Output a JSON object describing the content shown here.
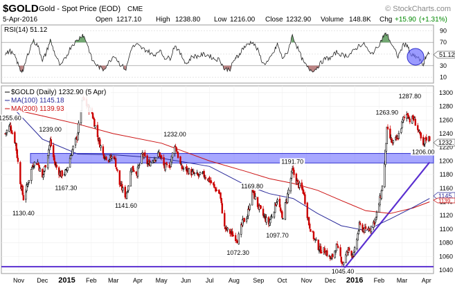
{
  "header": {
    "symbol": "$GOLD",
    "name": "Gold - Spot Price (EOD)",
    "exchange": "CME",
    "watermark": "© StockCharts.com",
    "date": "5-Apr-2016",
    "open_label": "Open",
    "open": "1217.10",
    "high_label": "High",
    "high": "1238.80",
    "low_label": "Low",
    "low": "1216.00",
    "close_label": "Close",
    "close": "1232.90",
    "volume_label": "Volume",
    "volume": "148.8K",
    "chg_label": "Chg",
    "chg": "+15.90",
    "chg_pct": "(+1.31%)"
  },
  "rsi_panel": {
    "label": "RSI(14) 51.12",
    "value_tag": "51.12",
    "ticks": [
      "90",
      "70",
      "50",
      "30",
      "10"
    ]
  },
  "price_panel": {
    "legend_main": "$GOLD (Daily) 1232.90 (5 Apr)",
    "legend_ma100": "MA(100) 1145.18",
    "legend_ma200": "MA(200) 1139.93",
    "ticks": [
      "1300",
      "1280",
      "1260",
      "1240",
      "1220",
      "1200",
      "1180",
      "1160",
      "1140",
      "1120",
      "1100",
      "1080",
      "1060",
      "1040"
    ],
    "tag_close": "1232.",
    "tag_ma100": "1145.",
    "tag_ma200": "1139.",
    "x_labels": [
      "Nov",
      "Dec",
      "2015",
      "Feb",
      "Mar",
      "Apr",
      "May",
      "Jun",
      "Jul",
      "Aug",
      "Sep",
      "Oct",
      "Nov",
      "Dec",
      "2016",
      "Feb",
      "Mar",
      "Apr"
    ]
  },
  "colors": {
    "up": "#000000",
    "down": "#cc0000",
    "ma100": "#2a2a9a",
    "ma200": "#cc1111",
    "band": "#7070ff",
    "trendline": "#5a2fd0",
    "rsi_fill_high": "#5a9a5a",
    "rsi_fill_low": "#b07070"
  },
  "chart_data": {
    "type": "candlestick",
    "title": "$GOLD Gold - Spot Price (EOD) CME",
    "ylim": [
      1035,
      1310
    ],
    "rsi_ylim": [
      0,
      100
    ],
    "annotations": [
      {
        "label": "1255.60",
        "x": "2014-10-21",
        "y": 1255.6
      },
      {
        "label": "1239.00",
        "x": "2014-12-11",
        "y": 1239.0
      },
      {
        "label": "1130.40",
        "x": "2014-11-07",
        "y": 1130.4
      },
      {
        "label": "1167.30",
        "x": "2014-12-31",
        "y": 1167.3
      },
      {
        "label": "1141.60",
        "x": "2015-03-17",
        "y": 1141.6
      },
      {
        "label": "1232.00",
        "x": "2015-05-18",
        "y": 1232.0
      },
      {
        "label": "1169.80",
        "x": "2015-08-24",
        "y": 1169.8
      },
      {
        "label": "1072.30",
        "x": "2015-08-06",
        "y": 1072.3
      },
      {
        "label": "1097.70",
        "x": "2015-09-25",
        "y": 1097.7
      },
      {
        "label": "1191.70",
        "x": "2015-10-14",
        "y": 1191.7
      },
      {
        "label": "1045.40",
        "x": "2015-12-17",
        "y": 1045.4
      },
      {
        "label": "1263.90",
        "x": "2016-02-11",
        "y": 1263.9
      },
      {
        "label": "1287.80",
        "x": "2016-03-11",
        "y": 1287.8
      },
      {
        "label": "1206.00",
        "x": "2016-03-28",
        "y": 1206.0
      }
    ],
    "horizontal_lines": [
      {
        "name": "support",
        "y": 1045
      },
      {
        "name": "band_top",
        "y": 1211
      },
      {
        "name": "band_bottom",
        "y": 1197
      }
    ],
    "trendline": {
      "from": {
        "x": "2015-12-17",
        "y": 1040
      },
      "to": {
        "x": "2016-04-05",
        "y": 1198
      }
    },
    "rsi_level": 51.12,
    "ma100_points": [
      {
        "x": "2014-10-15",
        "y": 1290
      },
      {
        "x": "2014-12-01",
        "y": 1232
      },
      {
        "x": "2015-01-15",
        "y": 1210
      },
      {
        "x": "2015-03-01",
        "y": 1209
      },
      {
        "x": "2015-05-01",
        "y": 1204
      },
      {
        "x": "2015-07-01",
        "y": 1192
      },
      {
        "x": "2015-08-15",
        "y": 1165
      },
      {
        "x": "2015-09-15",
        "y": 1152
      },
      {
        "x": "2015-10-15",
        "y": 1145
      },
      {
        "x": "2015-11-15",
        "y": 1123
      },
      {
        "x": "2015-12-15",
        "y": 1105
      },
      {
        "x": "2016-01-15",
        "y": 1098
      },
      {
        "x": "2016-02-15",
        "y": 1115
      },
      {
        "x": "2016-03-15",
        "y": 1132
      },
      {
        "x": "2016-04-05",
        "y": 1145
      }
    ],
    "ma200_points": [
      {
        "x": "2014-10-15",
        "y": 1278
      },
      {
        "x": "2014-12-01",
        "y": 1266
      },
      {
        "x": "2015-01-15",
        "y": 1254
      },
      {
        "x": "2015-03-01",
        "y": 1240
      },
      {
        "x": "2015-05-01",
        "y": 1226
      },
      {
        "x": "2015-07-01",
        "y": 1200
      },
      {
        "x": "2015-08-15",
        "y": 1185
      },
      {
        "x": "2015-09-15",
        "y": 1174
      },
      {
        "x": "2015-10-15",
        "y": 1167
      },
      {
        "x": "2015-11-15",
        "y": 1157
      },
      {
        "x": "2015-12-15",
        "y": 1142
      },
      {
        "x": "2016-01-15",
        "y": 1127
      },
      {
        "x": "2016-02-15",
        "y": 1123
      },
      {
        "x": "2016-03-15",
        "y": 1131
      },
      {
        "x": "2016-04-05",
        "y": 1140
      }
    ],
    "close_points": [
      {
        "x": "2014-10-15",
        "y": 1240
      },
      {
        "x": "2014-10-21",
        "y": 1252
      },
      {
        "x": "2014-10-28",
        "y": 1226
      },
      {
        "x": "2014-11-03",
        "y": 1170
      },
      {
        "x": "2014-11-07",
        "y": 1145
      },
      {
        "x": "2014-11-12",
        "y": 1165
      },
      {
        "x": "2014-11-19",
        "y": 1196
      },
      {
        "x": "2014-11-25",
        "y": 1198
      },
      {
        "x": "2014-12-01",
        "y": 1175
      },
      {
        "x": "2014-12-05",
        "y": 1195
      },
      {
        "x": "2014-12-11",
        "y": 1228
      },
      {
        "x": "2014-12-17",
        "y": 1195
      },
      {
        "x": "2014-12-24",
        "y": 1180
      },
      {
        "x": "2014-12-31",
        "y": 1184
      },
      {
        "x": "2015-01-07",
        "y": 1213
      },
      {
        "x": "2015-01-14",
        "y": 1235
      },
      {
        "x": "2015-01-21",
        "y": 1292
      },
      {
        "x": "2015-01-26",
        "y": 1282
      },
      {
        "x": "2015-02-02",
        "y": 1270
      },
      {
        "x": "2015-02-09",
        "y": 1236
      },
      {
        "x": "2015-02-16",
        "y": 1210
      },
      {
        "x": "2015-02-23",
        "y": 1203
      },
      {
        "x": "2015-03-02",
        "y": 1207
      },
      {
        "x": "2015-03-09",
        "y": 1166
      },
      {
        "x": "2015-03-17",
        "y": 1148
      },
      {
        "x": "2015-03-24",
        "y": 1190
      },
      {
        "x": "2015-03-31",
        "y": 1183
      },
      {
        "x": "2015-04-07",
        "y": 1210
      },
      {
        "x": "2015-04-14",
        "y": 1195
      },
      {
        "x": "2015-04-21",
        "y": 1203
      },
      {
        "x": "2015-04-28",
        "y": 1211
      },
      {
        "x": "2015-05-05",
        "y": 1190
      },
      {
        "x": "2015-05-12",
        "y": 1195
      },
      {
        "x": "2015-05-18",
        "y": 1225
      },
      {
        "x": "2015-05-26",
        "y": 1190
      },
      {
        "x": "2015-06-02",
        "y": 1187
      },
      {
        "x": "2015-06-09",
        "y": 1182
      },
      {
        "x": "2015-06-16",
        "y": 1178
      },
      {
        "x": "2015-06-23",
        "y": 1180
      },
      {
        "x": "2015-06-30",
        "y": 1173
      },
      {
        "x": "2015-07-07",
        "y": 1161
      },
      {
        "x": "2015-07-14",
        "y": 1152
      },
      {
        "x": "2015-07-20",
        "y": 1102
      },
      {
        "x": "2015-07-27",
        "y": 1095
      },
      {
        "x": "2015-08-03",
        "y": 1088
      },
      {
        "x": "2015-08-06",
        "y": 1085
      },
      {
        "x": "2015-08-12",
        "y": 1110
      },
      {
        "x": "2015-08-18",
        "y": 1120
      },
      {
        "x": "2015-08-24",
        "y": 1158
      },
      {
        "x": "2015-08-31",
        "y": 1135
      },
      {
        "x": "2015-09-07",
        "y": 1120
      },
      {
        "x": "2015-09-14",
        "y": 1108
      },
      {
        "x": "2015-09-21",
        "y": 1130
      },
      {
        "x": "2015-09-25",
        "y": 1146
      },
      {
        "x": "2015-10-01",
        "y": 1115
      },
      {
        "x": "2015-10-07",
        "y": 1145
      },
      {
        "x": "2015-10-14",
        "y": 1186
      },
      {
        "x": "2015-10-21",
        "y": 1166
      },
      {
        "x": "2015-10-28",
        "y": 1155
      },
      {
        "x": "2015-11-04",
        "y": 1108
      },
      {
        "x": "2015-11-11",
        "y": 1085
      },
      {
        "x": "2015-11-18",
        "y": 1070
      },
      {
        "x": "2015-11-25",
        "y": 1068
      },
      {
        "x": "2015-12-02",
        "y": 1055
      },
      {
        "x": "2015-12-09",
        "y": 1075
      },
      {
        "x": "2015-12-17",
        "y": 1050
      },
      {
        "x": "2015-12-24",
        "y": 1070
      },
      {
        "x": "2015-12-31",
        "y": 1062
      },
      {
        "x": "2016-01-07",
        "y": 1105
      },
      {
        "x": "2016-01-14",
        "y": 1098
      },
      {
        "x": "2016-01-21",
        "y": 1102
      },
      {
        "x": "2016-01-28",
        "y": 1116
      },
      {
        "x": "2016-02-04",
        "y": 1155
      },
      {
        "x": "2016-02-08",
        "y": 1195
      },
      {
        "x": "2016-02-11",
        "y": 1245
      },
      {
        "x": "2016-02-18",
        "y": 1225
      },
      {
        "x": "2016-02-25",
        "y": 1235
      },
      {
        "x": "2016-03-03",
        "y": 1262
      },
      {
        "x": "2016-03-08",
        "y": 1270
      },
      {
        "x": "2016-03-11",
        "y": 1260
      },
      {
        "x": "2016-03-16",
        "y": 1262
      },
      {
        "x": "2016-03-21",
        "y": 1247
      },
      {
        "x": "2016-03-28",
        "y": 1220
      },
      {
        "x": "2016-03-31",
        "y": 1234
      },
      {
        "x": "2016-04-05",
        "y": 1232.9
      }
    ]
  }
}
